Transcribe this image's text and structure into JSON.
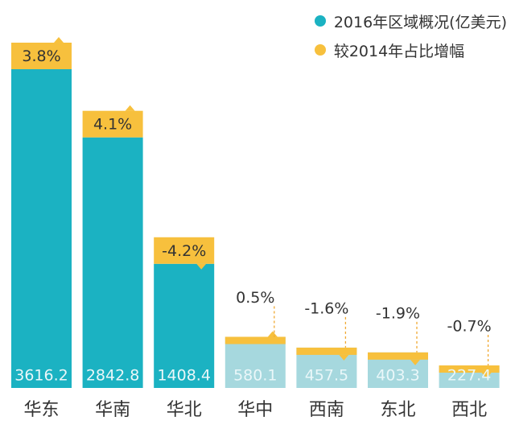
{
  "chart_data": {
    "type": "bar",
    "title": "",
    "xlabel": "",
    "ylabel": "",
    "categories": [
      "华东",
      "华南",
      "华北",
      "华中",
      "西南",
      "东北",
      "西北"
    ],
    "series": [
      {
        "name": "2016年区域概况(亿美元)",
        "values": [
          3616.2,
          2842.8,
          1408.4,
          580.1,
          457.5,
          403.3,
          227.4
        ],
        "labels": [
          "3616.2",
          "2842.8",
          "1408.4",
          "580.1",
          "457.5",
          "403.3",
          "227.4"
        ]
      },
      {
        "name": "较2014年占比增幅",
        "values": [
          3.8,
          4.1,
          -4.2,
          0.5,
          -1.6,
          -1.9,
          -0.7
        ],
        "labels": [
          "3.8%",
          "4.1%",
          "-4.2%",
          "0.5%",
          "-1.6%",
          "-1.9%",
          "-0.7%"
        ]
      }
    ],
    "ylim": [
      0,
      3616.2
    ],
    "legend_position": "top-right",
    "colors": {
      "bar_primary": "#1BB2C2",
      "bar_light": "#A6D8DE",
      "increment": "#F7C03D",
      "light_text": "#EAF7F9",
      "dark_text": "#333333",
      "guide": "#F0A830"
    }
  }
}
